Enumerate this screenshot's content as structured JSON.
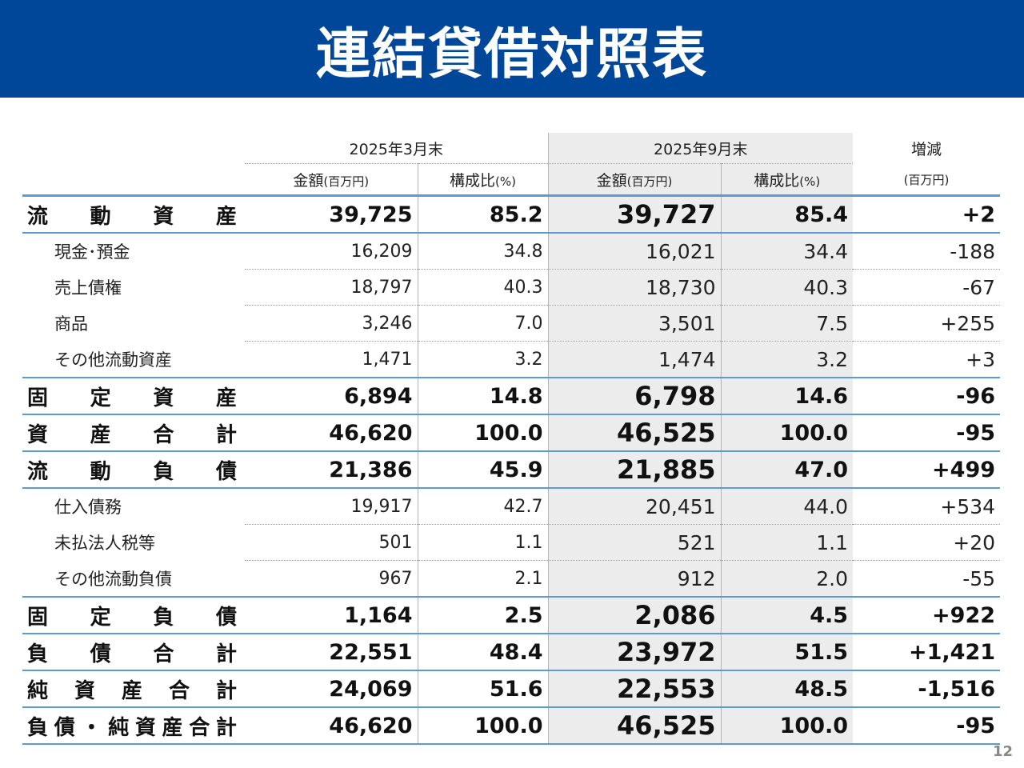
{
  "title": "連結貸借対照表",
  "page_number": "12",
  "header": {
    "period1": "2025年3月末",
    "period2": "2025年9月末",
    "diff": "増減",
    "amount_label": "金額",
    "amount_unit": "(百万円)",
    "ratio_label": "構成比",
    "ratio_unit": "(%)",
    "diff_unit": "(百万円)"
  },
  "rows": [
    {
      "type": "major",
      "label": [
        "流",
        "動",
        "資",
        "産"
      ],
      "amt1": "39,725",
      "pct1": "85.2",
      "amt2": "39,727",
      "pct2": "85.4",
      "diff": "+2"
    },
    {
      "type": "minor",
      "label": "現金･預金",
      "amt1": "16,209",
      "pct1": "34.8",
      "amt2": "16,021",
      "pct2": "34.4",
      "diff": "-188"
    },
    {
      "type": "minor",
      "label": "売上債権",
      "amt1": "18,797",
      "pct1": "40.3",
      "amt2": "18,730",
      "pct2": "40.3",
      "diff": "-67"
    },
    {
      "type": "minor",
      "label": "商品",
      "amt1": "3,246",
      "pct1": "7.0",
      "amt2": "3,501",
      "pct2": "7.5",
      "diff": "+255"
    },
    {
      "type": "minor",
      "label": "その他流動資産",
      "amt1": "1,471",
      "pct1": "3.2",
      "amt2": "1,474",
      "pct2": "3.2",
      "diff": "+3",
      "last": true
    },
    {
      "type": "major",
      "label": [
        "固",
        "定",
        "資",
        "産"
      ],
      "amt1": "6,894",
      "pct1": "14.8",
      "amt2": "6,798",
      "pct2": "14.6",
      "diff": "-96"
    },
    {
      "type": "major",
      "label": [
        "資",
        "産",
        "合",
        "計"
      ],
      "amt1": "46,620",
      "pct1": "100.0",
      "amt2": "46,525",
      "pct2": "100.0",
      "diff": "-95"
    },
    {
      "type": "major",
      "label": [
        "流",
        "動",
        "負",
        "債"
      ],
      "amt1": "21,386",
      "pct1": "45.9",
      "amt2": "21,885",
      "pct2": "47.0",
      "diff": "+499"
    },
    {
      "type": "minor",
      "label": "仕入債務",
      "amt1": "19,917",
      "pct1": "42.7",
      "amt2": "20,451",
      "pct2": "44.0",
      "diff": "+534"
    },
    {
      "type": "minor",
      "label": "未払法人税等",
      "amt1": "501",
      "pct1": "1.1",
      "amt2": "521",
      "pct2": "1.1",
      "diff": "+20"
    },
    {
      "type": "minor",
      "label": "その他流動負債",
      "amt1": "967",
      "pct1": "2.1",
      "amt2": "912",
      "pct2": "2.0",
      "diff": "-55",
      "last": true
    },
    {
      "type": "major",
      "label": [
        "固",
        "定",
        "負",
        "債"
      ],
      "amt1": "1,164",
      "pct1": "2.5",
      "amt2": "2,086",
      "pct2": "4.5",
      "diff": "+922"
    },
    {
      "type": "major",
      "label": [
        "負",
        "債",
        "合",
        "計"
      ],
      "amt1": "22,551",
      "pct1": "48.4",
      "amt2": "23,972",
      "pct2": "51.5",
      "diff": "+1,421"
    },
    {
      "type": "major",
      "label": [
        "純",
        "資",
        "産",
        "合",
        "計"
      ],
      "amt1": "24,069",
      "pct1": "51.6",
      "amt2": "22,553",
      "pct2": "48.5",
      "diff": "-1,516"
    },
    {
      "type": "major",
      "label": [
        "負",
        "債",
        "・",
        "純",
        "資",
        "産",
        "合",
        "計"
      ],
      "amt1": "46,620",
      "pct1": "100.0",
      "amt2": "46,525",
      "pct2": "100.0",
      "diff": "-95"
    }
  ]
}
